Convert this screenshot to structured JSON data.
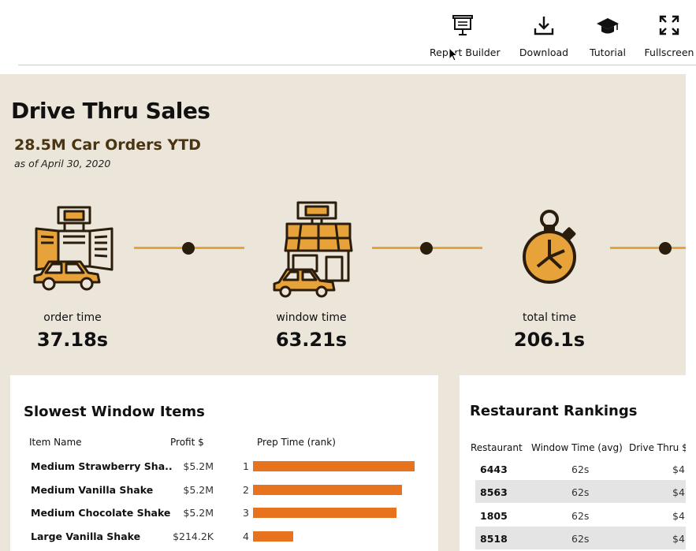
{
  "toolbar": {
    "buttons": [
      {
        "label": "Report Builder",
        "icon": "presentation-board-icon"
      },
      {
        "label": "Download",
        "icon": "download-icon"
      },
      {
        "label": "Tutorial",
        "icon": "graduation-cap-icon"
      },
      {
        "label": "Fullscreen",
        "icon": "fullscreen-icon"
      }
    ]
  },
  "dashboard": {
    "title": "Drive Thru Sales",
    "subtitle": "28.5M Car Orders YTD",
    "as_of": "as of April 30, 2020",
    "accent_color": "#e8731e",
    "icon_color": "#e8a23a",
    "kpis": [
      {
        "label": "order time",
        "value": "37.18s",
        "icon": "drive-thru-menu-board-icon"
      },
      {
        "label": "window time",
        "value": "63.21s",
        "icon": "drive-thru-window-icon"
      },
      {
        "label": "total time",
        "value": "206.1s",
        "icon": "stopwatch-icon"
      }
    ]
  },
  "slowest_items": {
    "title": "Slowest Window Items",
    "headers": {
      "item": "Item Name",
      "profit": "Profit $",
      "prep": "Prep Time (rank)"
    },
    "rows": [
      {
        "name": "Medium Strawberry Sha..",
        "profit": "$5.2M",
        "rank": "1",
        "prep_fraction": 1.0
      },
      {
        "name": "Medium Vanilla Shake",
        "profit": "$5.2M",
        "rank": "2",
        "prep_fraction": 0.92
      },
      {
        "name": "Medium Chocolate Shake",
        "profit": "$5.2M",
        "rank": "3",
        "prep_fraction": 0.89
      },
      {
        "name": "Large Vanilla Shake",
        "profit": "$214.2K",
        "rank": "4",
        "prep_fraction": 0.25
      }
    ]
  },
  "rankings": {
    "title": "Restaurant Rankings",
    "headers": {
      "restaurant": "Restaurant",
      "window": "Window Time (avg)",
      "drive": "Drive Thru $"
    },
    "rows": [
      {
        "id": "6443",
        "window": "62s",
        "drive": "$4"
      },
      {
        "id": "8563",
        "window": "62s",
        "drive": "$4"
      },
      {
        "id": "1805",
        "window": "62s",
        "drive": "$4"
      },
      {
        "id": "8518",
        "window": "62s",
        "drive": "$4"
      }
    ]
  }
}
